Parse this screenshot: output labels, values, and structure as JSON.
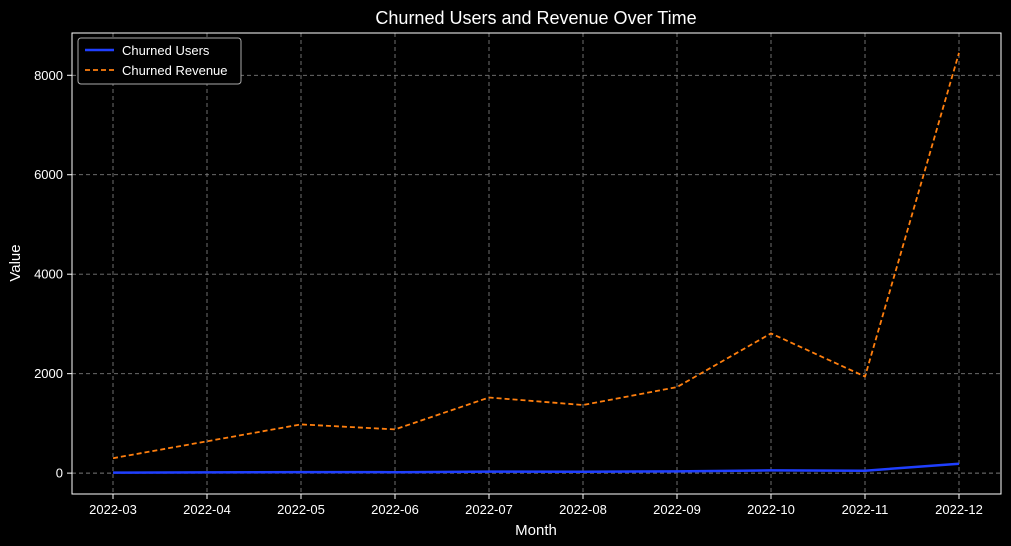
{
  "chart_data": {
    "type": "line",
    "title": "Churned Users and Revenue Over Time",
    "xlabel": "Month",
    "ylabel": "Value",
    "categories": [
      "2022-03",
      "2022-04",
      "2022-05",
      "2022-06",
      "2022-07",
      "2022-08",
      "2022-09",
      "2022-10",
      "2022-11",
      "2022-12"
    ],
    "yticks": [
      0,
      2000,
      4000,
      6000,
      8000
    ],
    "ylim": [
      -420,
      8850
    ],
    "grid": true,
    "legend_position": "top-left",
    "series": [
      {
        "name": "Churned Users",
        "color": "#1f3fff",
        "line_style": "solid",
        "values": [
          10,
          15,
          20,
          18,
          30,
          28,
          35,
          55,
          48,
          190
        ]
      },
      {
        "name": "Churned Revenue",
        "color": "#ff7f0e",
        "line_style": "dashed",
        "values": [
          300,
          640,
          980,
          880,
          1520,
          1370,
          1730,
          2810,
          1940,
          8450
        ]
      }
    ],
    "colors": {
      "background": "#000000",
      "axes": "#ffffff",
      "grid": "#7a7a7a"
    }
  }
}
